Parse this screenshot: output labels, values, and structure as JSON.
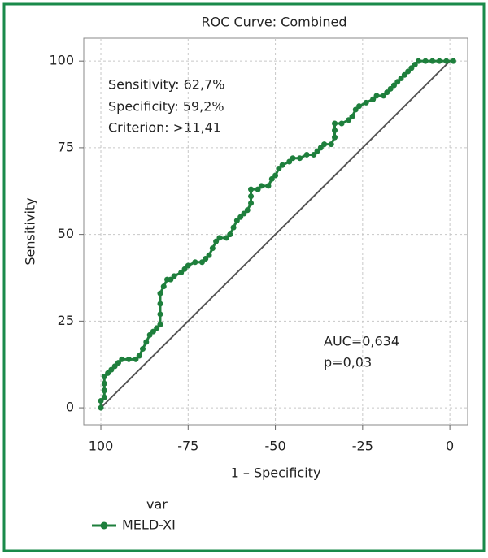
{
  "chart_data": {
    "type": "line",
    "title": "ROC Curve: Combined",
    "x_label": "1 – Specificity",
    "y_label": "Sensitivity",
    "annotations": [
      "Sensitivity: 62,7%",
      "Specificity: 59,2%",
      "Criterion: >11,41",
      "AUC=0,634",
      "p=0,03"
    ],
    "legend_title": "var",
    "xlim": [
      -104.9,
      5.1
    ],
    "ylim": [
      -4.9,
      106.6
    ],
    "xticks": [
      {
        "value": -100,
        "label": "100"
      },
      -75,
      -50,
      -25,
      0
    ],
    "yticks": [
      0,
      25,
      50,
      75,
      100
    ],
    "grid": true,
    "reference_line": {
      "x": [
        -100,
        0
      ],
      "y": [
        0,
        100
      ],
      "color": "#555555"
    },
    "series": [
      {
        "name": "MELD-XI",
        "color": "#1e7f3c",
        "x": [
          -100,
          -100,
          -99,
          -99,
          -99,
          -99,
          -98,
          -97,
          -96,
          -95,
          -94,
          -92,
          -90,
          -89,
          -88,
          -87,
          -86,
          -85,
          -84,
          -83,
          -83,
          -83,
          -83,
          -82,
          -81,
          -80,
          -79,
          -77,
          -76,
          -75,
          -73,
          -71,
          -70,
          -69,
          -68,
          -67,
          -66,
          -64,
          -63,
          -62,
          -61,
          -60,
          -59,
          -58,
          -57,
          -57,
          -57,
          -55,
          -54,
          -52,
          -51,
          -50,
          -49,
          -48,
          -46,
          -45,
          -43,
          -41,
          -39,
          -38,
          -37,
          -36,
          -34,
          -33,
          -33,
          -33,
          -31,
          -29,
          -28,
          -27,
          -26,
          -24,
          -22,
          -21,
          -19,
          -18,
          -17,
          -16,
          -15,
          -14,
          -13,
          -12,
          -11,
          -10,
          -9,
          -7,
          -5,
          -3,
          -1,
          1
        ],
        "values": [
          0,
          2,
          3,
          5,
          7,
          9,
          10,
          11,
          12,
          13,
          14,
          14,
          14,
          15,
          17,
          19,
          21,
          22,
          23,
          24,
          27,
          30,
          33,
          35,
          37,
          37,
          38,
          39,
          40,
          41,
          42,
          42,
          43,
          44,
          46,
          48,
          49,
          49,
          50,
          52,
          54,
          55,
          56,
          57,
          59,
          61,
          63,
          63,
          64,
          64,
          66,
          67,
          69,
          70,
          71,
          72,
          72,
          73,
          73,
          74,
          75,
          76,
          76,
          78,
          80,
          82,
          82,
          83,
          84,
          86,
          87,
          88,
          89,
          90,
          90,
          91,
          92,
          93,
          94,
          95,
          96,
          97,
          98,
          99,
          100,
          100,
          100,
          100,
          100,
          100
        ]
      }
    ]
  }
}
